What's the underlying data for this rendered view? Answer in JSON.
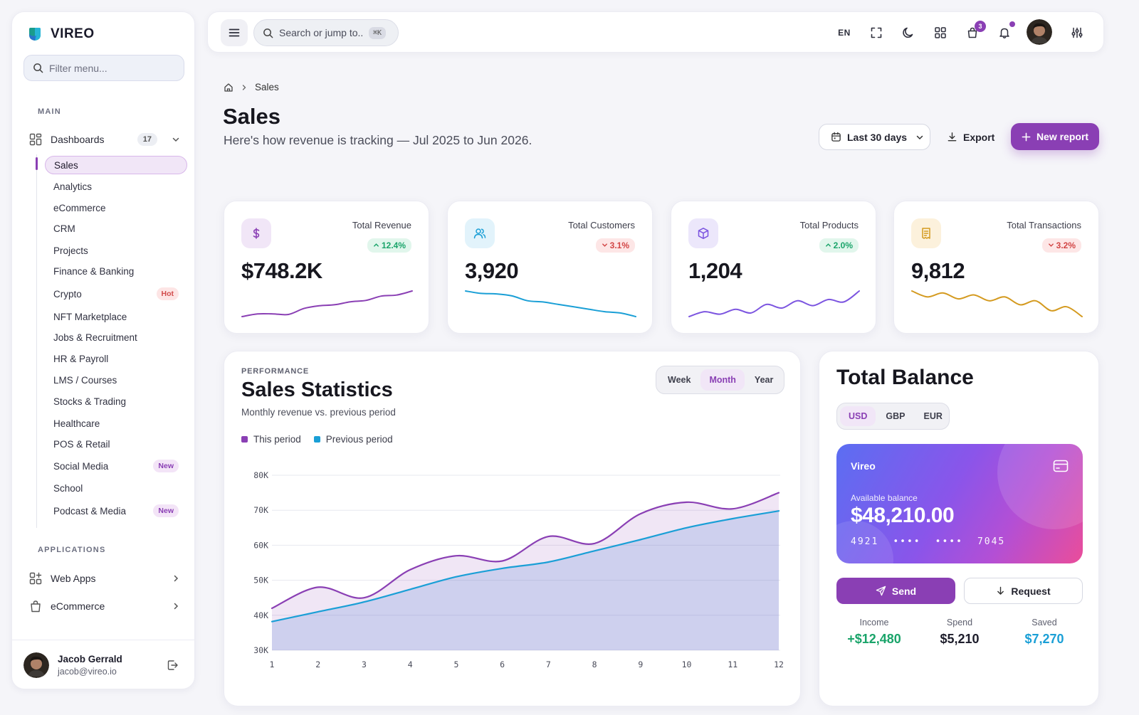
{
  "app": {
    "name": "VIREO"
  },
  "sidebar": {
    "filter_placeholder": "Filter menu...",
    "main_label": "MAIN",
    "dashboards": {
      "label": "Dashboards",
      "count": "17"
    },
    "items": [
      {
        "label": "Sales",
        "active": true
      },
      {
        "label": "Analytics"
      },
      {
        "label": "eCommerce"
      },
      {
        "label": "CRM"
      },
      {
        "label": "Projects"
      },
      {
        "label": "Finance & Banking"
      },
      {
        "label": "Crypto",
        "tag": "Hot"
      },
      {
        "label": "NFT Marketplace"
      },
      {
        "label": "Jobs & Recruitment"
      },
      {
        "label": "HR & Payroll"
      },
      {
        "label": "LMS / Courses"
      },
      {
        "label": "Stocks & Trading"
      },
      {
        "label": "Healthcare"
      },
      {
        "label": "POS & Retail"
      },
      {
        "label": "Social Media",
        "tag": "New"
      },
      {
        "label": "School"
      },
      {
        "label": "Podcast & Media",
        "tag": "New"
      }
    ],
    "applications_label": "APPLICATIONS",
    "apps": [
      {
        "label": "Web Apps",
        "icon": "grid-plus-icon"
      },
      {
        "label": "eCommerce",
        "icon": "shopping-bag-icon"
      }
    ],
    "user": {
      "name": "Jacob Gerrald",
      "email": "jacob@vireo.io"
    }
  },
  "topbar": {
    "search_placeholder": "Search or jump to...",
    "shortcut": "⌘K",
    "language": "EN",
    "cart_count": "3"
  },
  "header": {
    "breadcrumb": "Sales",
    "title": "Sales",
    "subtitle": "Here's how revenue is tracking — Jul 2025 to Jun 2026.",
    "range_label": "Last 30 days",
    "export_label": "Export",
    "new_report_label": "New report"
  },
  "kpis": [
    {
      "label": "Total Revenue",
      "value": "$748.2K",
      "delta": "12.4%",
      "direction": "up",
      "color": "#8a3fb4",
      "icon_bg": "#f1e6f7",
      "icon": "dollar-icon",
      "spark": [
        4,
        5,
        5,
        4.8,
        7,
        8,
        8.4,
        9.5,
        10,
        11.6,
        12,
        13.5
      ]
    },
    {
      "label": "Total Customers",
      "value": "3,920",
      "delta": "3.1%",
      "direction": "down",
      "color": "#1a9fd6",
      "icon_bg": "#e2f3fb",
      "icon": "users-icon",
      "spark": [
        25,
        24,
        23.8,
        23,
        21,
        20.5,
        19.5,
        18.5,
        17.5,
        16.5,
        16,
        14.5
      ]
    },
    {
      "label": "Total Products",
      "value": "1,204",
      "delta": "2.0%",
      "direction": "up",
      "color": "#7c55e0",
      "icon_bg": "#ece7fb",
      "icon": "box-icon",
      "spark": [
        3,
        7,
        5,
        9,
        6,
        13,
        10,
        16,
        12,
        17,
        15,
        24
      ]
    },
    {
      "label": "Total Transactions",
      "value": "9,812",
      "delta": "3.2%",
      "direction": "down",
      "color": "#d49a1f",
      "icon_bg": "#fcf1dc",
      "icon": "receipt-icon",
      "spark": [
        22,
        19,
        21,
        18,
        20,
        17,
        19,
        15,
        17,
        12,
        14,
        9
      ]
    }
  ],
  "stats": {
    "eyebrow": "PERFORMANCE",
    "title": "Sales Statistics",
    "subtitle": "Monthly revenue vs. previous period",
    "tabs": [
      "Week",
      "Month",
      "Year"
    ],
    "active_tab": "Month",
    "legend": [
      {
        "name": "This period",
        "color": "#8a3fb4"
      },
      {
        "name": "Previous period",
        "color": "#1a9fd6"
      }
    ]
  },
  "chart_data": {
    "type": "area",
    "x": [
      1,
      2,
      3,
      4,
      5,
      6,
      7,
      8,
      9,
      10,
      11,
      12
    ],
    "yticks": [
      "80K",
      "70K",
      "60K",
      "50K",
      "40K",
      "30K"
    ],
    "ylim": [
      30,
      80
    ],
    "series": [
      {
        "name": "This period",
        "color": "#8a3fb4",
        "values": [
          42,
          48,
          45,
          53,
          57,
          55.5,
          62.5,
          60.5,
          69,
          72.3,
          70.4,
          75
        ]
      },
      {
        "name": "Previous period",
        "color": "#1a9fd6",
        "values": [
          38.2,
          41,
          43.8,
          47.4,
          51,
          53.4,
          55.2,
          58.4,
          61.6,
          65,
          67.6,
          69.8
        ]
      }
    ],
    "grid": true
  },
  "balance": {
    "title": "Total Balance",
    "currencies": [
      "USD",
      "GBP",
      "EUR"
    ],
    "active_currency": "USD",
    "card": {
      "brand": "Vireo",
      "available_label": "Available balance",
      "amount": "$48,210.00",
      "number_parts": [
        "4921",
        "••••",
        "••••",
        "7045"
      ]
    },
    "send_label": "Send",
    "request_label": "Request",
    "stats": [
      {
        "label": "Income",
        "value": "+$12,480",
        "color": "#1aa46a"
      },
      {
        "label": "Spend",
        "value": "$5,210",
        "color": "#1d1d2b"
      },
      {
        "label": "Saved",
        "value": "$7,270",
        "color": "#1a9fd6"
      }
    ]
  }
}
